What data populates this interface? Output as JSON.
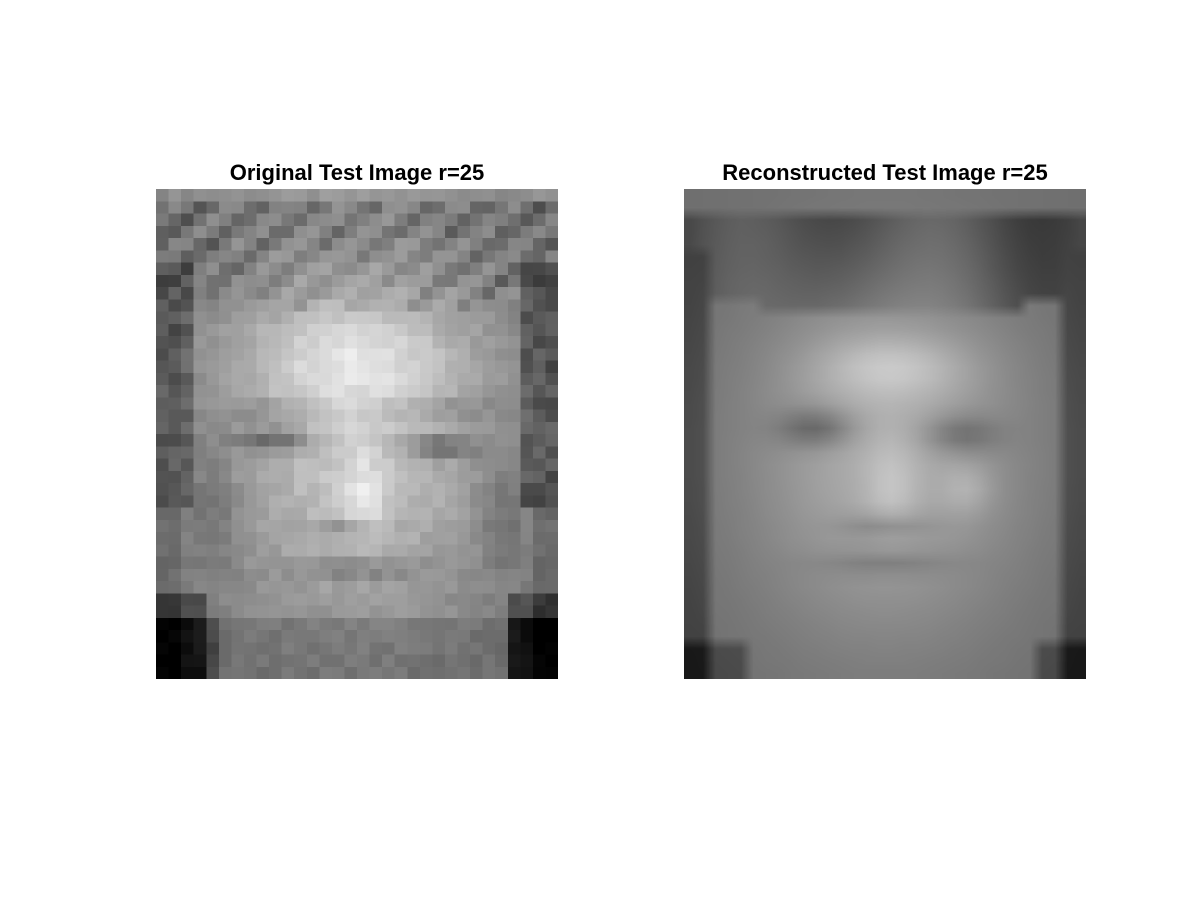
{
  "figure": {
    "panels": [
      {
        "title": "Original Test Image r=25",
        "colormap": "gray"
      },
      {
        "title": "Reconstructed Test Image r=25",
        "colormap": "gray"
      }
    ]
  }
}
